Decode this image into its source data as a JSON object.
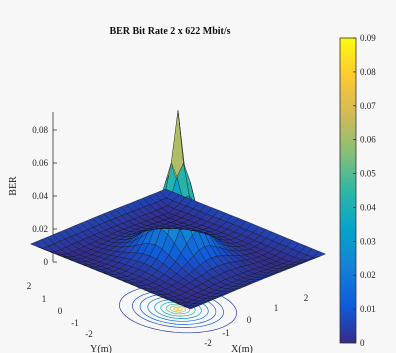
{
  "chart_data": {
    "type": "surface",
    "title": "BER Bit Rate 2 x 622 Mbit/s",
    "zlabel": "BER",
    "xlabel": "X(m)",
    "ylabel": "Y(m)",
    "x_ticks": [
      "-2",
      "-1",
      "0",
      "1",
      "2"
    ],
    "y_ticks": [
      "-2",
      "-1",
      "0",
      "1",
      "2"
    ],
    "z_ticks": [
      "0",
      "0.02",
      "0.04",
      "0.06",
      "0.08"
    ],
    "xlim": [
      -2.5,
      2.5
    ],
    "ylim": [
      -2.5,
      2.5
    ],
    "zlim": [
      0,
      0.09
    ],
    "grid_points": 25,
    "surface": {
      "description_of_shape": "peak",
      "peak_value": 0.09,
      "peak_location": [
        0,
        0
      ],
      "floor_value": 0.0,
      "corner_rise": 0.006
    },
    "colorbar": {
      "ticks": [
        "0",
        "0.01",
        "0.02",
        "0.03",
        "0.04",
        "0.05",
        "0.06",
        "0.07",
        "0.08",
        "0.09"
      ],
      "range": [
        0,
        0.09
      ],
      "colormap": "parula"
    }
  }
}
